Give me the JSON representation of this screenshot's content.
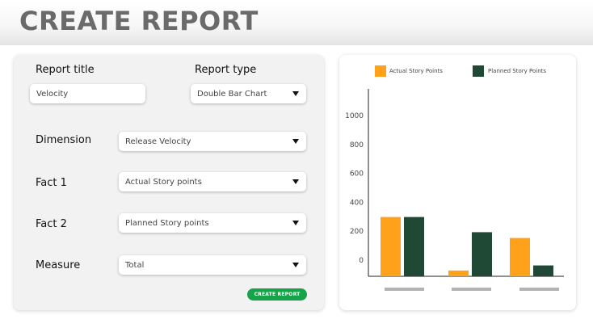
{
  "page": {
    "title": "CREATE REPORT"
  },
  "form": {
    "report_title_label": "Report title",
    "report_title_value": "Velocity",
    "report_type_label": "Report type",
    "report_type_value": "Double Bar Chart",
    "dimension_label": "Dimension",
    "dimension_value": "Release Velocity",
    "fact1_label": "Fact 1",
    "fact1_value": "Actual Story points",
    "fact2_label": "Fact 2",
    "fact2_value": "Planned Story points",
    "measure_label": "Measure",
    "measure_value": "Total",
    "create_button_label": "CREATE REPORT"
  },
  "colors": {
    "actual": "#ffa11b",
    "planned": "#1f4835",
    "button": "#16a34a",
    "placeholder_bar": "#b3b3b3"
  },
  "chart_data": {
    "type": "bar",
    "title": "",
    "xlabel": "",
    "ylabel": "",
    "categories": [
      "",
      "",
      ""
    ],
    "series": [
      {
        "name": "Actual Story Points",
        "values": [
          410,
          40,
          265
        ]
      },
      {
        "name": "Planned Story Points",
        "values": [
          410,
          305,
          75
        ]
      }
    ],
    "y_ticks": [
      "0",
      "200",
      "400",
      "600",
      "800",
      "1000"
    ],
    "legend": "top",
    "grid": false
  }
}
